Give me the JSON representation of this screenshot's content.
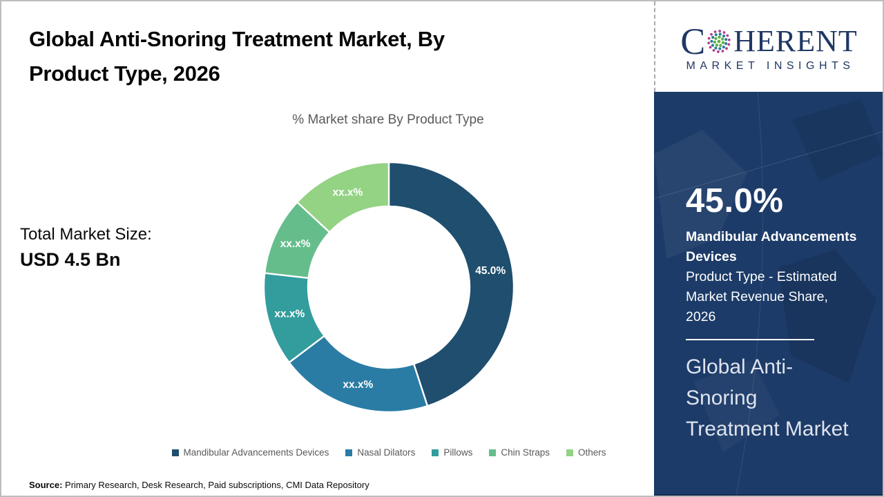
{
  "header": {
    "title": "Global Anti-Snoring Treatment Market, By\nProduct Type, 2026"
  },
  "logo": {
    "word_start": "C",
    "word_end": "HERENT",
    "subtitle": "MARKET INSIGHTS",
    "colors": {
      "navy": "#1f3864",
      "magenta": "#b13d8d",
      "blue": "#2c7d9c",
      "green": "#5fb146"
    }
  },
  "total_market": {
    "label": "Total Market Size:",
    "value": "USD 4.5 Bn"
  },
  "chart_data": {
    "type": "pie",
    "donut": true,
    "title": "% Market share By Product Type",
    "categories": [
      "Mandibular Advancements Devices",
      "Nasal Dilators",
      "Pillows",
      "Chin Straps",
      "Others"
    ],
    "values": [
      45.0,
      19.7,
      12.1,
      10.1,
      13.1
    ],
    "labels_shown": [
      "45.0%",
      "xx.x%",
      "xx.x%",
      "xx.x%",
      "xx.x%"
    ],
    "colors": [
      "#1f4e6e",
      "#2a7ca5",
      "#339c9c",
      "#66bd8c",
      "#94d284"
    ],
    "legend_position": "bottom"
  },
  "sidebar": {
    "bg": "#1c3b68",
    "stat_value": "45.0%",
    "stat_label": "Mandibular Advancements Devices",
    "stat_desc": "Product Type - Estimated Market Revenue Share, 2026",
    "market_name": "Global Anti-Snoring Treatment Market"
  },
  "source": {
    "label": "Source:",
    "text": " Primary Research, Desk Research, Paid subscriptions, CMI Data Repository"
  }
}
